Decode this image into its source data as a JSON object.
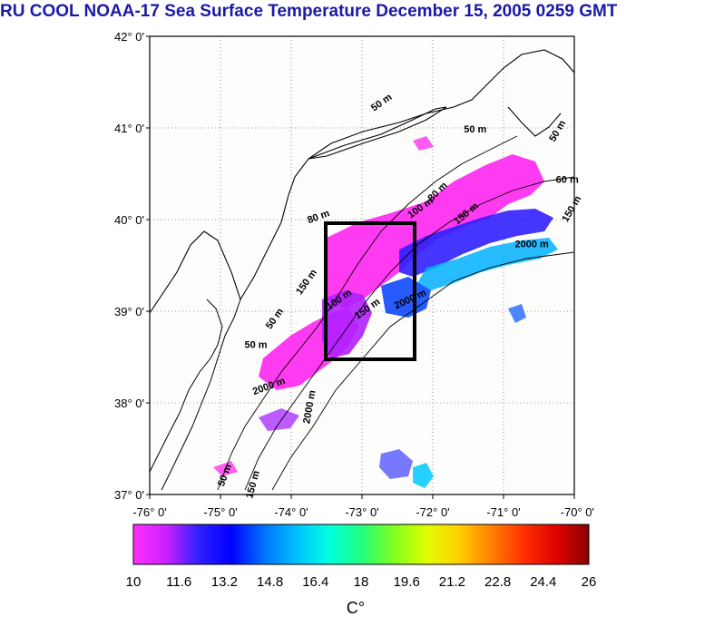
{
  "title": "RU COOL  NOAA-17 Sea Surface Temperature December 15, 2005 0259 GMT",
  "map": {
    "lat_labels": [
      "42° 0'",
      "41° 0'",
      "40° 0'",
      "39° 0'",
      "38° 0'",
      "37° 0'"
    ],
    "lon_labels": [
      "-76° 0'",
      "-75° 0'",
      "-74° 0'",
      "-73° 0'",
      "-72° 0'",
      "-71° 0'",
      "-70° 0'"
    ],
    "lat_range": [
      37,
      42
    ],
    "lon_range": [
      -76,
      -70
    ],
    "isobaths": [
      {
        "label": "50 m",
        "lon": -71.4,
        "lat": 40.95,
        "rot": 0
      },
      {
        "label": "50 m",
        "lon": -72.7,
        "lat": 41.25,
        "rot": -35
      },
      {
        "label": "50 m",
        "lon": -70.2,
        "lat": 40.95,
        "rot": -60
      },
      {
        "label": "60 m",
        "lon": -70.1,
        "lat": 40.4,
        "rot": 0
      },
      {
        "label": "100 m",
        "lon": -72.15,
        "lat": 40.1,
        "rot": -35
      },
      {
        "label": "80 m",
        "lon": -71.9,
        "lat": 40.28,
        "rot": -45
      },
      {
        "label": "150 m",
        "lon": -71.5,
        "lat": 40.04,
        "rot": -40
      },
      {
        "label": "150 m",
        "lon": -70.0,
        "lat": 40.1,
        "rot": -60
      },
      {
        "label": "80 m",
        "lon": -73.6,
        "lat": 40.0,
        "rot": -20
      },
      {
        "label": "2000 m",
        "lon": -70.6,
        "lat": 39.7,
        "rot": 0
      },
      {
        "label": "150 m",
        "lon": -73.75,
        "lat": 39.3,
        "rot": -55
      },
      {
        "label": "100 m",
        "lon": -73.3,
        "lat": 39.1,
        "rot": -35
      },
      {
        "label": "150 m",
        "lon": -72.9,
        "lat": 39.0,
        "rot": -35
      },
      {
        "label": "2000 m",
        "lon": -72.3,
        "lat": 39.1,
        "rot": -25
      },
      {
        "label": "50 m",
        "lon": -74.2,
        "lat": 38.9,
        "rot": -55
      },
      {
        "label": "50 m",
        "lon": -74.5,
        "lat": 38.6,
        "rot": 0
      },
      {
        "label": "2000 m",
        "lon": -74.3,
        "lat": 38.15,
        "rot": -20
      },
      {
        "label": "2000 m",
        "lon": -73.7,
        "lat": 37.95,
        "rot": -80
      },
      {
        "label": "50 m",
        "lon": -74.9,
        "lat": 37.2,
        "rot": -70
      },
      {
        "label": "150 m",
        "lon": -74.5,
        "lat": 37.1,
        "rot": -75
      }
    ]
  },
  "colorbar": {
    "ticks": [
      "10",
      "11.6",
      "13.2",
      "14.8",
      "16.4",
      "18",
      "19.6",
      "21.2",
      "22.8",
      "24.4",
      "26"
    ],
    "unit": "C°",
    "min": 10,
    "max": 26,
    "colors": [
      "#ff30ff",
      "#cc20ff",
      "#3020ff",
      "#0000ff",
      "#0070ff",
      "#00c0ff",
      "#00ffe0",
      "#20ff80",
      "#80ff20",
      "#e0ff00",
      "#ffd000",
      "#ff8000",
      "#ff3000",
      "#e00000",
      "#880000"
    ]
  },
  "legend_colors": {
    "coast": "#000000",
    "title": "#1a1aa8",
    "box": "#000000"
  }
}
